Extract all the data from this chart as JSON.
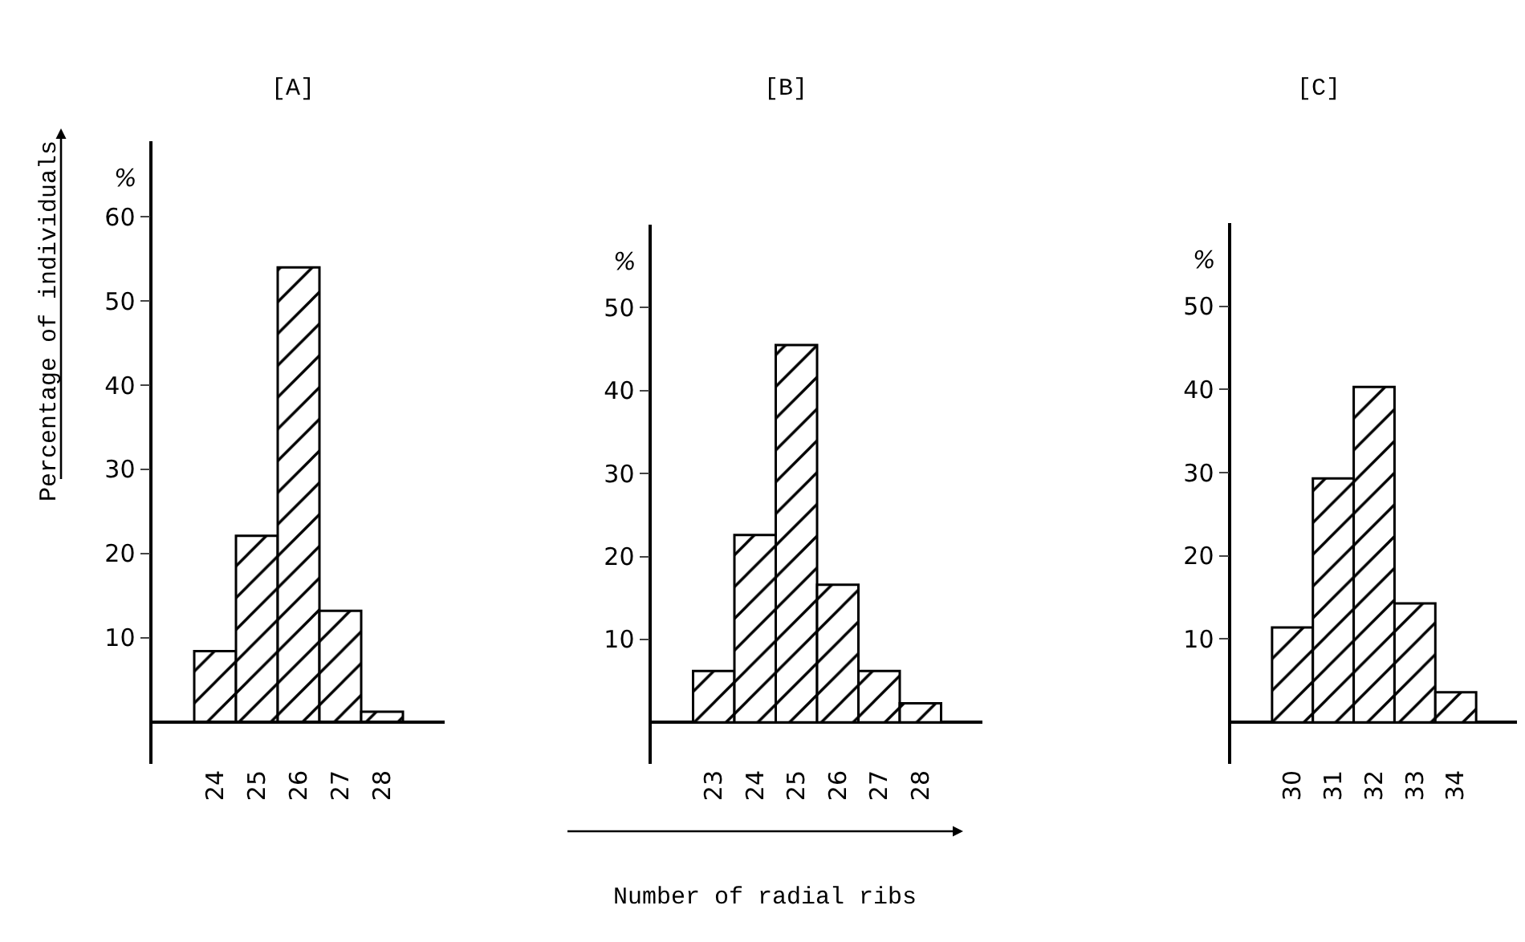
{
  "chart_data": [
    {
      "type": "histogram",
      "title": "[A]",
      "ylabel": "%",
      "annotations": [
        "Percentage of individuals"
      ],
      "bins": [
        23.5,
        24.5,
        25.5,
        26.5,
        27.5,
        28.5
      ],
      "values": [
        8.4,
        22.1,
        54,
        13.2,
        1.2
      ],
      "color": "#000000",
      "xlim": [
        22.5,
        29.5
      ],
      "xticks": [
        24,
        25,
        26,
        27,
        28
      ],
      "ylim": [
        -5,
        69
      ],
      "yticks": [
        10,
        20,
        30,
        40,
        50,
        60
      ]
    },
    {
      "type": "histogram",
      "title": "[B]",
      "ylabel": "%",
      "xlabel": "Number of radial ribs",
      "bins": [
        22.5,
        23.5,
        24.5,
        25.5,
        26.5,
        27.5,
        28.5
      ],
      "values": [
        6.2,
        22.6,
        45.5,
        16.6,
        6.2,
        2.3
      ],
      "color": "#000000",
      "xlim": [
        21.5,
        29.5
      ],
      "xticks": [
        23,
        24,
        25,
        26,
        27,
        28
      ],
      "ylim": [
        -5,
        60
      ],
      "yticks": [
        10,
        20,
        30,
        40,
        50
      ]
    },
    {
      "type": "histogram",
      "title": "[C]",
      "ylabel": "%",
      "bins": [
        29.5,
        30.5,
        31.5,
        32.5,
        33.5,
        34.5
      ],
      "values": [
        11.4,
        29.3,
        40.3,
        14.3,
        3.6
      ],
      "color": "#000000",
      "xlim": [
        28.5,
        35.5
      ],
      "xticks": [
        30,
        31,
        32,
        33,
        34
      ],
      "ylim": [
        -5,
        60
      ],
      "yticks": [
        10,
        20,
        30,
        40,
        50
      ]
    }
  ]
}
